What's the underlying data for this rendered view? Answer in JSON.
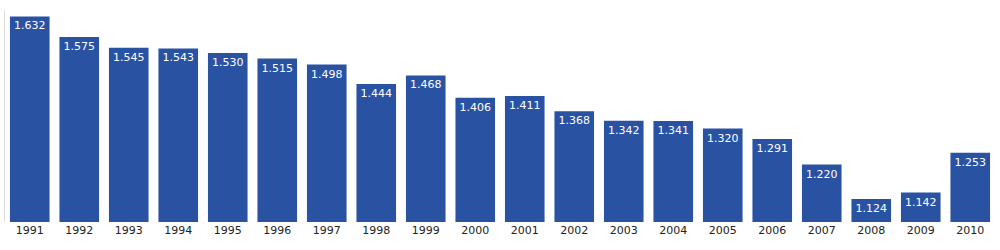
{
  "chart_data": {
    "type": "bar",
    "categories": [
      "1991",
      "1992",
      "1993",
      "1994",
      "1995",
      "1996",
      "1997",
      "1998",
      "1999",
      "2000",
      "2001",
      "2002",
      "2003",
      "2004",
      "2005",
      "2006",
      "2007",
      "2008",
      "2009",
      "2010"
    ],
    "values": [
      1632,
      1575,
      1545,
      1543,
      1530,
      1515,
      1498,
      1444,
      1468,
      1406,
      1411,
      1368,
      1342,
      1341,
      1320,
      1291,
      1220,
      1124,
      1142,
      1253
    ],
    "value_labels": [
      "1.632",
      "1.575",
      "1.545",
      "1.543",
      "1.530",
      "1.515",
      "1.498",
      "1.444",
      "1.468",
      "1.406",
      "1.411",
      "1.368",
      "1.342",
      "1.341",
      "1.320",
      "1.291",
      "1.220",
      "1.124",
      "1.142",
      "1.253"
    ],
    "color": "#2a52a3",
    "ylim": [
      1060,
      1650
    ],
    "data_labels": true,
    "tick_labels": "x",
    "grid": false
  }
}
